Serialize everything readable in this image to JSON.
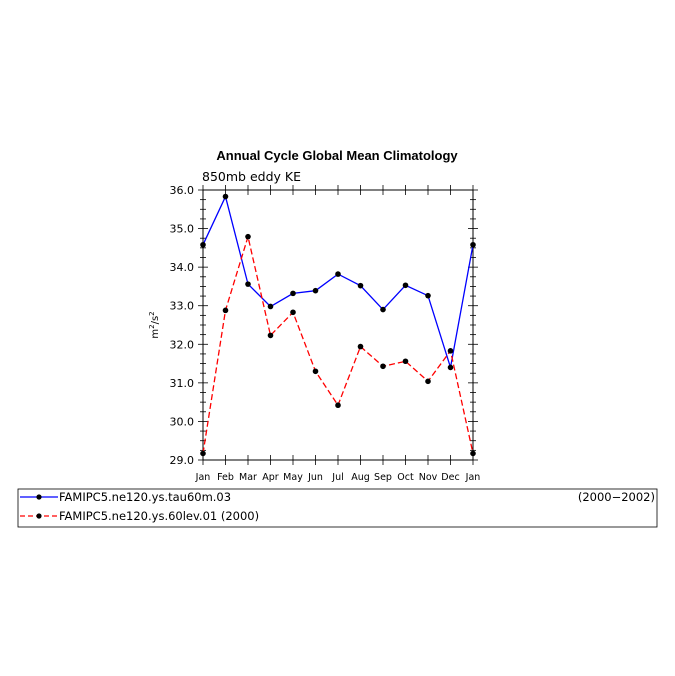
{
  "chart_data": {
    "type": "line",
    "title": "Annual Cycle Global Mean Climatology",
    "subtitle": "850mb eddy KE",
    "ylabel": "m²/s²",
    "xlabel": "",
    "ylim": [
      29.0,
      36.0
    ],
    "yticks": [
      "29.0",
      "30.0",
      "31.0",
      "32.0",
      "33.0",
      "34.0",
      "35.0",
      "36.0"
    ],
    "categories": [
      "Jan",
      "Feb",
      "Mar",
      "Apr",
      "May",
      "Jun",
      "Jul",
      "Aug",
      "Sep",
      "Oct",
      "Nov",
      "Dec",
      "Jan"
    ],
    "series": [
      {
        "name": "FAMIPC5.ne120.ys.tau60m.03",
        "period": "(2000−2002)",
        "color": "#0000ff",
        "dash": "solid",
        "values": [
          34.58,
          35.83,
          33.56,
          32.98,
          33.32,
          33.39,
          33.82,
          33.52,
          32.9,
          33.53,
          33.26,
          31.4,
          34.58
        ]
      },
      {
        "name": "FAMIPC5.ne120.ys.60lev.01 (2000)",
        "period": "",
        "color": "#ff0000",
        "dash": "dashed",
        "values": [
          29.17,
          32.88,
          34.79,
          32.23,
          32.83,
          31.3,
          30.42,
          31.94,
          31.43,
          31.56,
          31.04,
          31.83,
          29.17
        ]
      }
    ],
    "grid": false,
    "legend": "bottom"
  }
}
